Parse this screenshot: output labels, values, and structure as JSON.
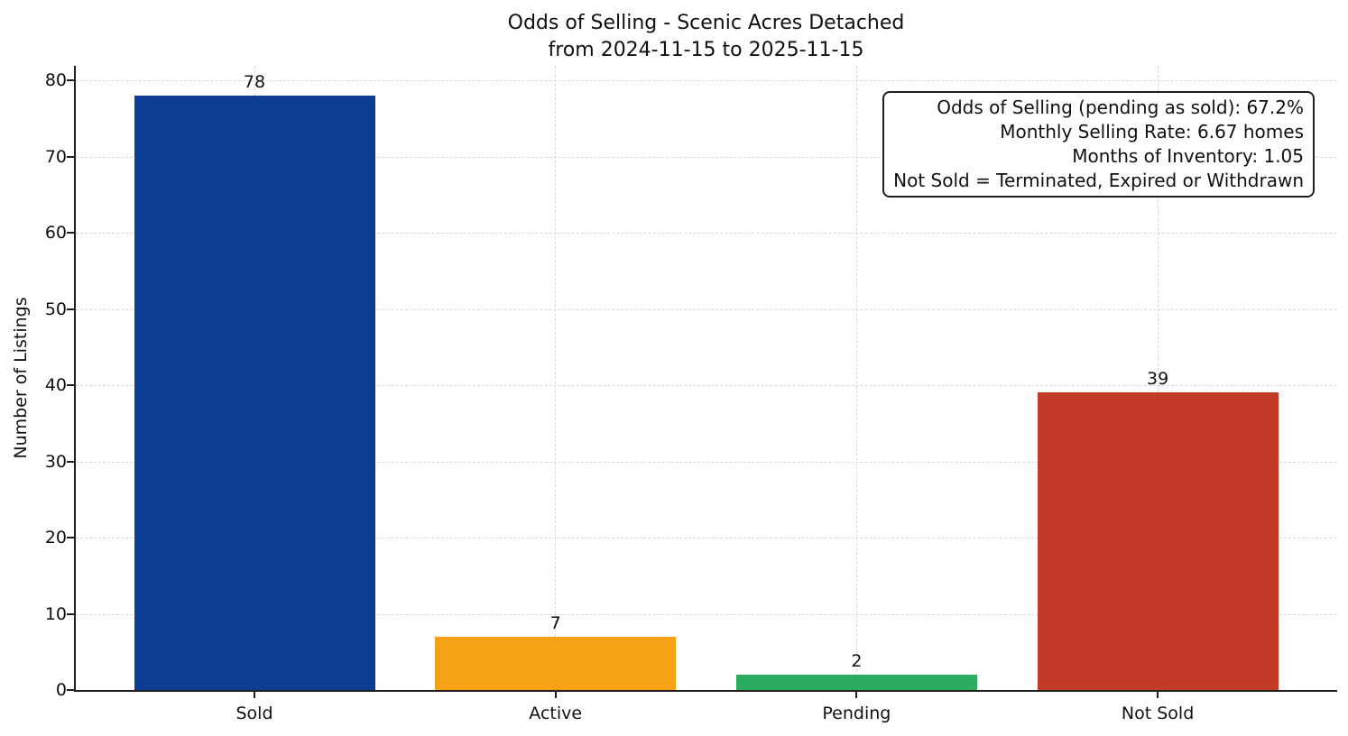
{
  "chart_data": {
    "type": "bar",
    "title": "Odds of Selling - Scenic Acres Detached",
    "subtitle": "from 2024-11-15 to 2025-11-15",
    "ylabel": "Number of Listings",
    "xlabel": "",
    "categories": [
      "Sold",
      "Active",
      "Pending",
      "Not Sold"
    ],
    "values": [
      78,
      7,
      2,
      39
    ],
    "bar_colors": [
      "#0e3d96",
      "#f5a216",
      "#2bac60",
      "#c33a28"
    ],
    "yticks": [
      0,
      10,
      20,
      30,
      40,
      50,
      60,
      70,
      80
    ],
    "ylim": [
      0,
      82
    ],
    "grid": true,
    "grid_style": "dashed",
    "legend_position": "none",
    "annotation_lines": [
      "Odds of Selling (pending as sold): 67.2%",
      "Monthly Selling Rate: 6.67 homes",
      "Months of Inventory: 1.05",
      "Not Sold = Terminated, Expired or Withdrawn"
    ],
    "colors": {
      "axis": "#1f1f1f",
      "grid": "#d9d9d9",
      "text": "#111111",
      "background": "#ffffff"
    }
  }
}
